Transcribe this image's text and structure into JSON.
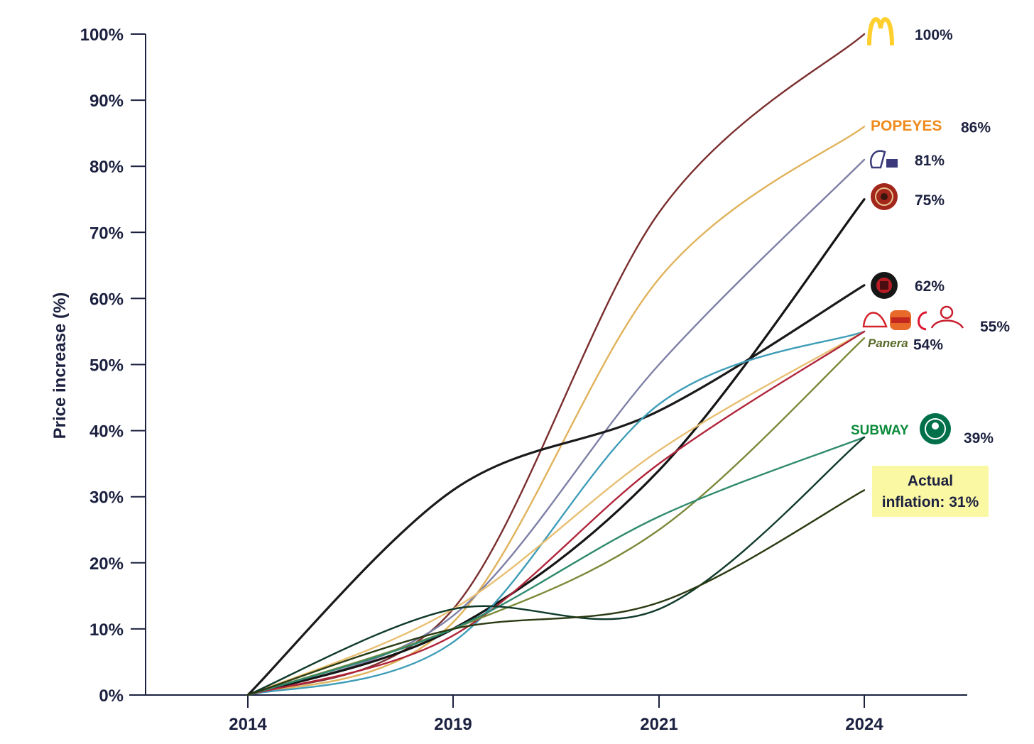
{
  "chart_data": {
    "type": "line",
    "xlabel": "",
    "ylabel": "Price increase (%)",
    "x": [
      "2014",
      "2019",
      "2021",
      "2024"
    ],
    "y_ticks": [
      "0%",
      "10%",
      "20%",
      "30%",
      "40%",
      "50%",
      "60%",
      "70%",
      "80%",
      "90%",
      "100%"
    ],
    "ylim": [
      0,
      100
    ],
    "grid": false,
    "series": [
      {
        "values": [
          0,
          13,
          73,
          100
        ],
        "color": "#7a2e2e"
      },
      {
        "values": [
          0,
          11,
          63,
          86
        ],
        "color": "#e0b25a"
      },
      {
        "values": [
          0,
          12,
          50,
          81
        ],
        "color": "#7d7fa6"
      },
      {
        "values": [
          0,
          10,
          34,
          75
        ],
        "color": "#151515"
      },
      {
        "values": [
          0,
          31,
          43,
          62
        ],
        "color": "#1a1a1a"
      },
      {
        "values": [
          0,
          8,
          44,
          55
        ],
        "color": "#3f9db8"
      },
      {
        "values": [
          0,
          13,
          37,
          55
        ],
        "color": "#e8bf72"
      },
      {
        "values": [
          0,
          9,
          35,
          55
        ],
        "color": "#b0243a"
      },
      {
        "values": [
          0,
          10,
          25,
          54
        ],
        "color": "#7a8a3a"
      },
      {
        "values": [
          0,
          10,
          27,
          39
        ],
        "color": "#2f8a6e"
      },
      {
        "values": [
          0,
          13,
          13,
          39
        ],
        "color": "#0f3a2a"
      },
      {
        "values": [
          0,
          10,
          14,
          31
        ],
        "color": "#2a3a12"
      }
    ],
    "end_labels": [
      {
        "text": "100%",
        "value": 100
      },
      {
        "text": "86%",
        "value": 86
      },
      {
        "text": "81%",
        "value": 81
      },
      {
        "text": "75%",
        "value": 75
      },
      {
        "text": "62%",
        "value": 62
      },
      {
        "text": "55%",
        "value": 55
      },
      {
        "text": "54%",
        "value": 54
      },
      {
        "text": "39%",
        "value": 39
      }
    ],
    "annotation": {
      "line1": "Actual",
      "line2": "inflation: 31%",
      "value": 31
    },
    "logos": {
      "popeyes": "POPEYES",
      "subway": "SUBWAY",
      "panera": "Panera",
      "mcdonalds_icon": "mcdonalds-arches-icon",
      "tacobell_icon": "taco-bell-icon",
      "chipotle_icon": "chipotle-icon",
      "wingstop_icon": "wingstop-icon",
      "arbys_icon": "arbys-icon",
      "burgerking_icon": "burger-king-icon",
      "chickfila_icon": "chick-fil-a-icon",
      "wendys_icon": "wendys-icon",
      "starbucks_icon": "starbucks-icon"
    }
  }
}
